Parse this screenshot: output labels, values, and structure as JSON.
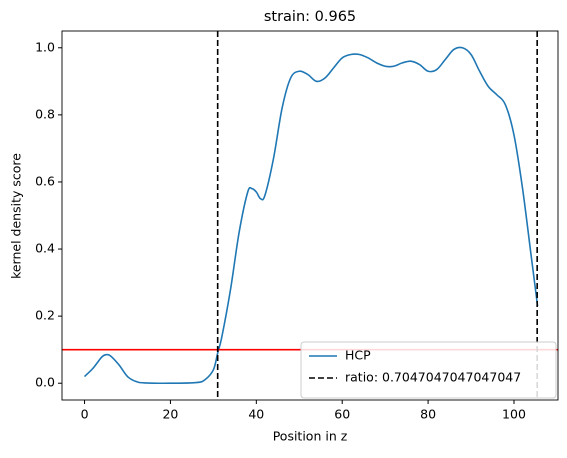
{
  "chart_data": {
    "type": "line",
    "title": "strain: 0.965",
    "xlabel": "Position in z",
    "ylabel": "kernel density score",
    "x": [
      0,
      2,
      4,
      5,
      6,
      8,
      10,
      12,
      14,
      20,
      26,
      28,
      30,
      31,
      32,
      34,
      36,
      38,
      39,
      40,
      41,
      42,
      44,
      46,
      48,
      50,
      52,
      54,
      56,
      58,
      60,
      62,
      64,
      66,
      68,
      70,
      72,
      74,
      76,
      78,
      80,
      82,
      84,
      86,
      88,
      90,
      92,
      94,
      96,
      98,
      100,
      102,
      104,
      105.5
    ],
    "series": [
      {
        "name": "HCP",
        "color": "#1f77b4",
        "values": [
          0.02,
          0.045,
          0.078,
          0.085,
          0.082,
          0.055,
          0.02,
          0.005,
          0.001,
          0,
          0.002,
          0.01,
          0.04,
          0.09,
          0.14,
          0.28,
          0.45,
          0.57,
          0.58,
          0.57,
          0.55,
          0.56,
          0.67,
          0.82,
          0.91,
          0.93,
          0.92,
          0.9,
          0.91,
          0.94,
          0.97,
          0.98,
          0.98,
          0.97,
          0.955,
          0.945,
          0.945,
          0.955,
          0.96,
          0.95,
          0.93,
          0.935,
          0.965,
          0.995,
          1.0,
          0.98,
          0.93,
          0.885,
          0.86,
          0.83,
          0.74,
          0.58,
          0.38,
          0.23
        ]
      }
    ],
    "vlines": {
      "name": "ratio: 0.7047047047047047",
      "color": "#000000",
      "values": [
        31,
        105.4
      ]
    },
    "hline": {
      "value": 0.1,
      "color": "#ff0000"
    },
    "xlim": [
      -5.25,
      110.25
    ],
    "ylim": [
      -0.05,
      1.05
    ],
    "xticks": [
      0,
      20,
      40,
      60,
      80,
      100
    ],
    "yticks": [
      {
        "value": 0,
        "label": "0.0"
      },
      0.2,
      0.4,
      0.6,
      0.8,
      {
        "value": 1,
        "label": "1.0"
      }
    ],
    "grid": false,
    "legend": "lower right"
  }
}
